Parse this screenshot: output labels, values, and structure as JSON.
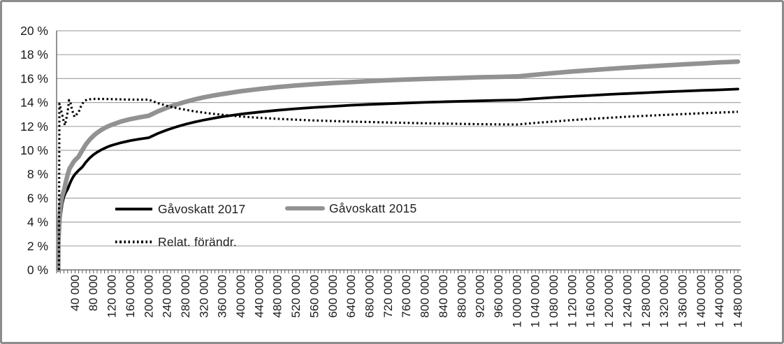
{
  "frame": {
    "background": "#ffffff",
    "border_color": "#8c8c8c"
  },
  "chart_data": {
    "type": "line",
    "title": "",
    "xlabel": "",
    "ylabel": "",
    "grid": "horizontal-on",
    "grid_color": "#a6a6a6",
    "axis_color": "#595959",
    "tick_color": "#404040",
    "label_color": "#1a1a1a",
    "legend_position": "inside-plot-left",
    "ylim": [
      0,
      20
    ],
    "xlim": [
      0,
      1486000
    ],
    "y_tick_step_percent": 2,
    "y_tick_labels": [
      "0 %",
      "2 %",
      "4 %",
      "6 %",
      "8 %",
      "10 %",
      "12 %",
      "14 %",
      "16 %",
      "18 %",
      "20 %"
    ],
    "x_major_tick_interval": 40000,
    "x_minor_tick_interval": 8000,
    "x_tick_labels": [
      "40 000",
      "80 000",
      "120 000",
      "160 000",
      "200 000",
      "240 000",
      "280 000",
      "320 000",
      "360 000",
      "400 000",
      "440 000",
      "480 000",
      "520 000",
      "560 000",
      "600 000",
      "640 000",
      "680 000",
      "720 000",
      "760 000",
      "800 000",
      "840 000",
      "880 000",
      "920 000",
      "960 000",
      "1 000 000",
      "1 040 000",
      "1 080 000",
      "1 120 000",
      "1 160 000",
      "1 200 000",
      "1 240 000",
      "1 280 000",
      "1 320 000",
      "1 360 000",
      "1 400 000",
      "1 440 000",
      "1 480 000"
    ],
    "series": [
      {
        "name": "Gåvoskatt 2017",
        "color": "#000000",
        "style": "solid",
        "stroke_width": 3.8,
        "points": [
          [
            4500,
            0
          ],
          [
            5000,
            2.0
          ],
          [
            8000,
            4.25
          ],
          [
            12000,
            5.5
          ],
          [
            16000,
            6.13
          ],
          [
            20000,
            6.5
          ],
          [
            24000,
            6.75
          ],
          [
            28000,
            7.14
          ],
          [
            32000,
            7.5
          ],
          [
            36000,
            7.78
          ],
          [
            40000,
            8.0
          ],
          [
            48000,
            8.33
          ],
          [
            56000,
            8.61
          ],
          [
            64000,
            9.03
          ],
          [
            72000,
            9.36
          ],
          [
            80000,
            9.63
          ],
          [
            88000,
            9.84
          ],
          [
            96000,
            10.02
          ],
          [
            104000,
            10.17
          ],
          [
            112000,
            10.31
          ],
          [
            120000,
            10.42
          ],
          [
            140000,
            10.64
          ],
          [
            160000,
            10.81
          ],
          [
            180000,
            10.94
          ],
          [
            200000,
            11.05
          ],
          [
            220000,
            11.41
          ],
          [
            240000,
            11.71
          ],
          [
            260000,
            11.96
          ],
          [
            280000,
            12.18
          ],
          [
            300000,
            12.37
          ],
          [
            320000,
            12.53
          ],
          [
            340000,
            12.68
          ],
          [
            360000,
            12.81
          ],
          [
            400000,
            13.03
          ],
          [
            440000,
            13.2
          ],
          [
            480000,
            13.35
          ],
          [
            520000,
            13.48
          ],
          [
            560000,
            13.59
          ],
          [
            600000,
            13.68
          ],
          [
            640000,
            13.77
          ],
          [
            680000,
            13.84
          ],
          [
            720000,
            13.9
          ],
          [
            760000,
            13.96
          ],
          [
            800000,
            14.01
          ],
          [
            840000,
            14.06
          ],
          [
            880000,
            14.1
          ],
          [
            920000,
            14.14
          ],
          [
            960000,
            14.18
          ],
          [
            1000000,
            14.21
          ],
          [
            1040000,
            14.32
          ],
          [
            1080000,
            14.42
          ],
          [
            1120000,
            14.51
          ],
          [
            1160000,
            14.59
          ],
          [
            1200000,
            14.68
          ],
          [
            1240000,
            14.75
          ],
          [
            1280000,
            14.82
          ],
          [
            1320000,
            14.89
          ],
          [
            1360000,
            14.95
          ],
          [
            1400000,
            15.01
          ],
          [
            1440000,
            15.06
          ],
          [
            1480000,
            15.12
          ]
        ]
      },
      {
        "name": "Gåvoskatt 2015",
        "color": "#929292",
        "style": "solid",
        "stroke_width": 6.5,
        "points": [
          [
            3500,
            0
          ],
          [
            4000,
            2.5
          ],
          [
            8000,
            5.25
          ],
          [
            12000,
            6.17
          ],
          [
            16000,
            6.63
          ],
          [
            20000,
            7.35
          ],
          [
            24000,
            7.96
          ],
          [
            28000,
            8.46
          ],
          [
            32000,
            8.72
          ],
          [
            36000,
            8.97
          ],
          [
            40000,
            9.18
          ],
          [
            48000,
            9.48
          ],
          [
            56000,
            10.02
          ],
          [
            64000,
            10.52
          ],
          [
            72000,
            10.9
          ],
          [
            80000,
            11.21
          ],
          [
            88000,
            11.47
          ],
          [
            96000,
            11.68
          ],
          [
            104000,
            11.86
          ],
          [
            112000,
            12.01
          ],
          [
            120000,
            12.14
          ],
          [
            140000,
            12.41
          ],
          [
            160000,
            12.61
          ],
          [
            180000,
            12.76
          ],
          [
            200000,
            12.89
          ],
          [
            220000,
            13.26
          ],
          [
            240000,
            13.57
          ],
          [
            260000,
            13.83
          ],
          [
            280000,
            14.06
          ],
          [
            300000,
            14.26
          ],
          [
            320000,
            14.43
          ],
          [
            340000,
            14.58
          ],
          [
            360000,
            14.71
          ],
          [
            400000,
            14.94
          ],
          [
            440000,
            15.13
          ],
          [
            480000,
            15.29
          ],
          [
            520000,
            15.42
          ],
          [
            560000,
            15.53
          ],
          [
            600000,
            15.63
          ],
          [
            640000,
            15.71
          ],
          [
            680000,
            15.79
          ],
          [
            720000,
            15.86
          ],
          [
            760000,
            15.92
          ],
          [
            800000,
            15.97
          ],
          [
            840000,
            16.02
          ],
          [
            880000,
            16.06
          ],
          [
            920000,
            16.11
          ],
          [
            960000,
            16.14
          ],
          [
            1000000,
            16.18
          ],
          [
            1040000,
            16.32
          ],
          [
            1080000,
            16.46
          ],
          [
            1120000,
            16.59
          ],
          [
            1160000,
            16.7
          ],
          [
            1200000,
            16.81
          ],
          [
            1240000,
            16.92
          ],
          [
            1280000,
            17.01
          ],
          [
            1320000,
            17.1
          ],
          [
            1360000,
            17.19
          ],
          [
            1400000,
            17.27
          ],
          [
            1440000,
            17.35
          ],
          [
            1480000,
            17.42
          ]
        ]
      },
      {
        "name": "Relat. förändr.",
        "color": "#000000",
        "style": "dotted",
        "stroke_width": 3.2,
        "points": [
          [
            5000,
            0
          ],
          [
            6000,
            13.9
          ],
          [
            9000,
            13.5
          ],
          [
            12000,
            13.0
          ],
          [
            15000,
            12.5
          ],
          [
            18000,
            12.1
          ],
          [
            21000,
            12.6
          ],
          [
            24000,
            13.2
          ],
          [
            27000,
            14.2
          ],
          [
            30000,
            14.0
          ],
          [
            33000,
            13.5
          ],
          [
            36000,
            13.1
          ],
          [
            39000,
            12.8
          ],
          [
            42000,
            12.9
          ],
          [
            45000,
            13.1
          ],
          [
            48000,
            13.2
          ],
          [
            52000,
            13.6
          ],
          [
            56000,
            13.9
          ],
          [
            60000,
            14.1
          ],
          [
            66000,
            14.25
          ],
          [
            80000,
            14.3
          ],
          [
            100000,
            14.3
          ],
          [
            120000,
            14.28
          ],
          [
            150000,
            14.25
          ],
          [
            175000,
            14.24
          ],
          [
            200000,
            14.24
          ],
          [
            220000,
            13.95
          ],
          [
            240000,
            13.72
          ],
          [
            260000,
            13.54
          ],
          [
            280000,
            13.39
          ],
          [
            300000,
            13.26
          ],
          [
            320000,
            13.15
          ],
          [
            340000,
            13.05
          ],
          [
            360000,
            12.97
          ],
          [
            400000,
            12.83
          ],
          [
            440000,
            12.72
          ],
          [
            480000,
            12.64
          ],
          [
            520000,
            12.56
          ],
          [
            560000,
            12.5
          ],
          [
            600000,
            12.45
          ],
          [
            640000,
            12.4
          ],
          [
            680000,
            12.37
          ],
          [
            720000,
            12.33
          ],
          [
            760000,
            12.3
          ],
          [
            800000,
            12.26
          ],
          [
            840000,
            12.24
          ],
          [
            880000,
            12.21
          ],
          [
            920000,
            12.19
          ],
          [
            960000,
            12.17
          ],
          [
            1000000,
            12.16
          ],
          [
            1040000,
            12.29
          ],
          [
            1080000,
            12.41
          ],
          [
            1120000,
            12.53
          ],
          [
            1160000,
            12.63
          ],
          [
            1200000,
            12.72
          ],
          [
            1240000,
            12.81
          ],
          [
            1280000,
            12.89
          ],
          [
            1320000,
            12.96
          ],
          [
            1360000,
            13.03
          ],
          [
            1400000,
            13.1
          ],
          [
            1440000,
            13.16
          ],
          [
            1480000,
            13.22
          ]
        ]
      }
    ]
  }
}
